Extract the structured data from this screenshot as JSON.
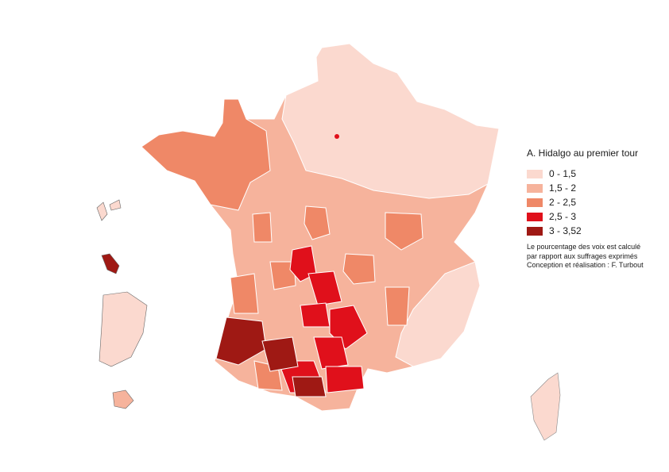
{
  "legend": {
    "title": "A. Hidalgo au premier tour",
    "classes": [
      {
        "label": "0 - 1,5",
        "color": "#fbd9cf"
      },
      {
        "label": "1,5 - 2",
        "color": "#f6b39c"
      },
      {
        "label": "2 - 2,5",
        "color": "#ef8867"
      },
      {
        "label": "2,5 - 3",
        "color": "#e0101b"
      },
      {
        "label": "3 - 3,52",
        "color": "#9f1914"
      }
    ]
  },
  "notes": {
    "line1": "Le pourcentage des voix est calculé",
    "line2": "par rapport aux suffrages exprimés",
    "line3": "Conception et réalisation : F. Turbout"
  }
}
